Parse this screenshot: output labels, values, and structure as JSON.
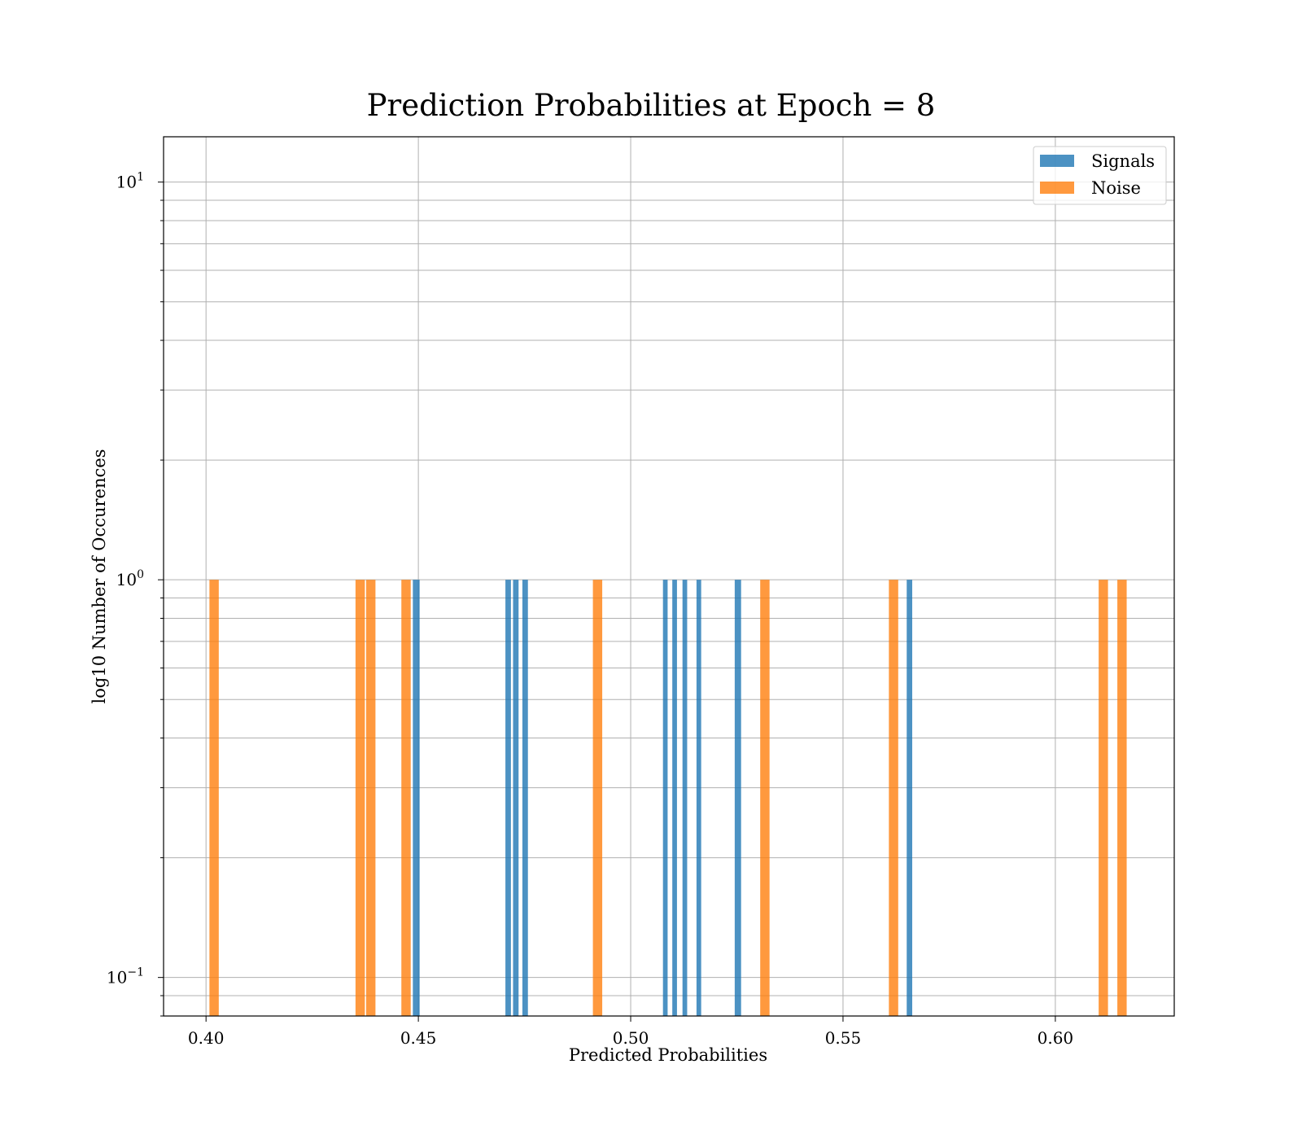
{
  "chart_data": {
    "type": "bar",
    "title": "Prediction Probabilities at Epoch = 8",
    "xlabel": "Predicted Probabilities",
    "ylabel": "log10 Number of Occurences",
    "xlim": [
      0.39,
      0.628
    ],
    "ylim": [
      0.08,
      13
    ],
    "yscale": "log",
    "grid": true,
    "legend_position": "top-right",
    "x_ticks": [
      {
        "value": 0.4,
        "label": "0.40"
      },
      {
        "value": 0.45,
        "label": "0.45"
      },
      {
        "value": 0.5,
        "label": "0.50"
      },
      {
        "value": 0.55,
        "label": "0.55"
      },
      {
        "value": 0.6,
        "label": "0.60"
      }
    ],
    "y_major_ticks": [
      {
        "value": 0.1,
        "base": "10",
        "exp": "−1"
      },
      {
        "value": 1,
        "base": "10",
        "exp": "0"
      },
      {
        "value": 10,
        "base": "10",
        "exp": "1"
      }
    ],
    "series": [
      {
        "name": "Signals",
        "color": "#1f77b4",
        "bins": [
          {
            "x0": 0.4487,
            "x1": 0.4503,
            "count": 1
          },
          {
            "x0": 0.4705,
            "x1": 0.4718,
            "count": 1
          },
          {
            "x0": 0.4723,
            "x1": 0.4736,
            "count": 1
          },
          {
            "x0": 0.4745,
            "x1": 0.4758,
            "count": 1
          },
          {
            "x0": 0.5076,
            "x1": 0.5087,
            "count": 1
          },
          {
            "x0": 0.5098,
            "x1": 0.5109,
            "count": 1
          },
          {
            "x0": 0.5122,
            "x1": 0.5133,
            "count": 1
          },
          {
            "x0": 0.5155,
            "x1": 0.5166,
            "count": 1
          },
          {
            "x0": 0.5245,
            "x1": 0.526,
            "count": 1
          },
          {
            "x0": 0.565,
            "x1": 0.5663,
            "count": 1
          }
        ]
      },
      {
        "name": "Noise",
        "color": "#ff7f0e",
        "bins": [
          {
            "x0": 0.4008,
            "x1": 0.403,
            "count": 1
          },
          {
            "x0": 0.4352,
            "x1": 0.4374,
            "count": 1
          },
          {
            "x0": 0.4377,
            "x1": 0.4399,
            "count": 1
          },
          {
            "x0": 0.446,
            "x1": 0.4482,
            "count": 1
          },
          {
            "x0": 0.4911,
            "x1": 0.4933,
            "count": 1
          },
          {
            "x0": 0.5305,
            "x1": 0.5327,
            "count": 1
          },
          {
            "x0": 0.5608,
            "x1": 0.563,
            "count": 1
          },
          {
            "x0": 0.6102,
            "x1": 0.6124,
            "count": 1
          },
          {
            "x0": 0.6146,
            "x1": 0.6168,
            "count": 1
          }
        ]
      }
    ]
  }
}
